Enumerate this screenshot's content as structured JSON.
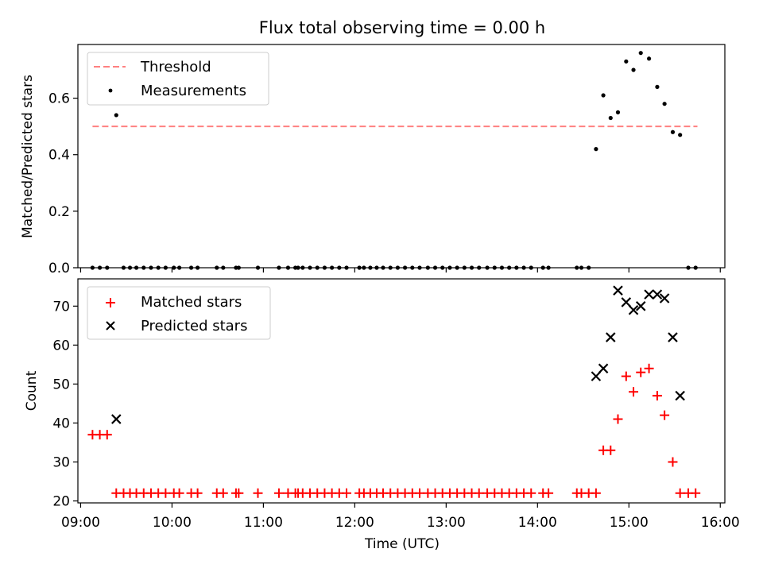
{
  "chart_data": [
    {
      "type": "scatter",
      "title": "Flux total observing time = 0.00 h",
      "xlabel": "",
      "ylabel": "Matched/Predicted stars",
      "xlim_hours": [
        8.97,
        16.05
      ],
      "ylim": [
        0,
        0.79
      ],
      "yticks": [
        0.0,
        0.2,
        0.4,
        0.6
      ],
      "ytick_labels": [
        "0.0",
        "0.2",
        "0.4",
        "0.6"
      ],
      "xticks_hours": [
        9,
        10,
        11,
        12,
        13,
        14,
        15,
        16
      ],
      "legend_position": "top-left",
      "threshold": {
        "name": "Threshold",
        "y": 0.5,
        "x_range_hours": [
          9.13,
          15.75
        ],
        "color": "#ff8080",
        "style": "dashed"
      },
      "series": [
        {
          "name": "Measurements",
          "marker": "dot",
          "color": "#000000",
          "x": [
            9.13,
            9.21,
            9.29,
            9.39,
            9.47,
            9.54,
            9.61,
            9.69,
            9.77,
            9.85,
            9.93,
            10.02,
            10.08,
            10.21,
            10.28,
            10.49,
            10.56,
            10.7,
            10.73,
            10.94,
            11.17,
            11.27,
            11.35,
            11.38,
            11.43,
            11.51,
            11.59,
            11.67,
            11.75,
            11.83,
            11.91,
            12.05,
            12.1,
            12.17,
            12.24,
            12.31,
            12.39,
            12.47,
            12.55,
            12.63,
            12.71,
            12.8,
            12.88,
            12.96,
            13.04,
            13.12,
            13.2,
            13.28,
            13.36,
            13.45,
            13.53,
            13.61,
            13.69,
            13.77,
            13.85,
            13.93,
            14.06,
            14.12,
            14.43,
            14.48,
            14.56,
            14.64,
            14.72,
            14.8,
            14.88,
            14.97,
            15.05,
            15.13,
            15.22,
            15.31,
            15.39,
            15.48,
            15.56,
            15.65,
            15.73
          ],
          "y": [
            0,
            0,
            0,
            0.54,
            0,
            0,
            0,
            0,
            0,
            0,
            0,
            0,
            0,
            0,
            0,
            0,
            0,
            0,
            0,
            0,
            0,
            0,
            0,
            0,
            0,
            0,
            0,
            0,
            0,
            0,
            0,
            0,
            0,
            0,
            0,
            0,
            0,
            0,
            0,
            0,
            0,
            0,
            0,
            0,
            0,
            0,
            0,
            0,
            0,
            0,
            0,
            0,
            0,
            0,
            0,
            0,
            0,
            0,
            0,
            0,
            0,
            0.42,
            0.61,
            0.53,
            0.55,
            0.73,
            0.7,
            0.76,
            0.74,
            0.64,
            0.58,
            0.48,
            0.47,
            0,
            0
          ]
        }
      ]
    },
    {
      "type": "scatter",
      "title": "",
      "xlabel": "Time (UTC)",
      "ylabel": "Count",
      "xlim_hours": [
        8.97,
        16.05
      ],
      "ylim": [
        19.5,
        77
      ],
      "yticks": [
        20,
        30,
        40,
        50,
        60,
        70
      ],
      "ytick_labels": [
        "20",
        "30",
        "40",
        "50",
        "60",
        "70"
      ],
      "xticks_hours": [
        9,
        10,
        11,
        12,
        13,
        14,
        15,
        16
      ],
      "xtick_labels": [
        "09:00",
        "10:00",
        "11:00",
        "12:00",
        "13:00",
        "14:00",
        "15:00",
        "16:00"
      ],
      "legend_position": "top-left",
      "series": [
        {
          "name": "Matched stars",
          "marker": "plus",
          "color": "#ff0000",
          "x": [
            9.13,
            9.21,
            9.29,
            9.39,
            9.47,
            9.54,
            9.61,
            9.69,
            9.77,
            9.85,
            9.93,
            10.02,
            10.08,
            10.21,
            10.28,
            10.49,
            10.56,
            10.7,
            10.73,
            10.94,
            11.17,
            11.27,
            11.35,
            11.38,
            11.43,
            11.51,
            11.59,
            11.67,
            11.75,
            11.83,
            11.91,
            12.05,
            12.1,
            12.17,
            12.24,
            12.31,
            12.39,
            12.47,
            12.55,
            12.63,
            12.71,
            12.8,
            12.88,
            12.96,
            13.04,
            13.12,
            13.2,
            13.28,
            13.36,
            13.45,
            13.53,
            13.61,
            13.69,
            13.77,
            13.85,
            13.93,
            14.06,
            14.12,
            14.43,
            14.48,
            14.56,
            14.64,
            14.72,
            14.8,
            14.88,
            14.97,
            15.05,
            15.13,
            15.22,
            15.31,
            15.39,
            15.48,
            15.56,
            15.65,
            15.73
          ],
          "y": [
            37,
            37,
            37,
            22,
            22,
            22,
            22,
            22,
            22,
            22,
            22,
            22,
            22,
            22,
            22,
            22,
            22,
            22,
            22,
            22,
            22,
            22,
            22,
            22,
            22,
            22,
            22,
            22,
            22,
            22,
            22,
            22,
            22,
            22,
            22,
            22,
            22,
            22,
            22,
            22,
            22,
            22,
            22,
            22,
            22,
            22,
            22,
            22,
            22,
            22,
            22,
            22,
            22,
            22,
            22,
            22,
            22,
            22,
            22,
            22,
            22,
            22,
            33,
            33,
            41,
            52,
            48,
            53,
            54,
            47,
            42,
            30,
            22,
            22,
            22
          ]
        },
        {
          "name": "Predicted stars",
          "marker": "x",
          "color": "#000000",
          "x": [
            9.39,
            14.64,
            14.72,
            14.8,
            14.88,
            14.97,
            15.05,
            15.13,
            15.22,
            15.31,
            15.39,
            15.48,
            15.56
          ],
          "y": [
            41,
            52,
            54,
            62,
            74,
            71,
            69,
            70,
            73,
            73,
            72,
            62,
            47
          ]
        }
      ]
    }
  ]
}
